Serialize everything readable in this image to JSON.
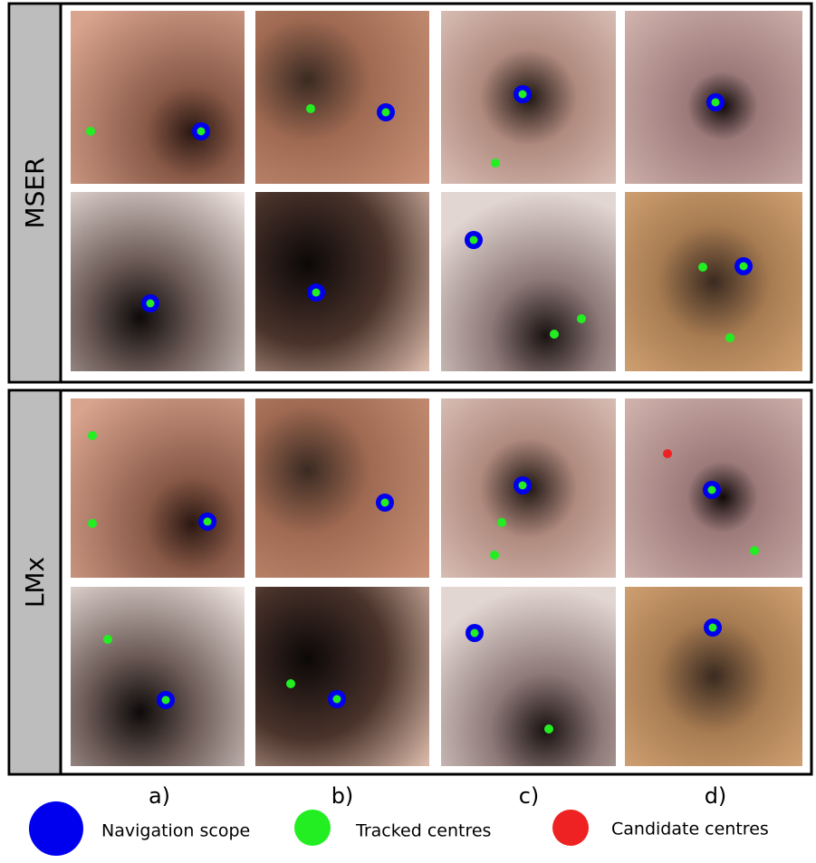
{
  "figure": {
    "row_labels": [
      "MSER",
      "LMx"
    ],
    "column_labels": [
      "a)",
      "b)",
      "c)",
      "d)"
    ],
    "legend": [
      "Navigation scope",
      "Tracked centres",
      "Candidate centres"
    ]
  }
}
